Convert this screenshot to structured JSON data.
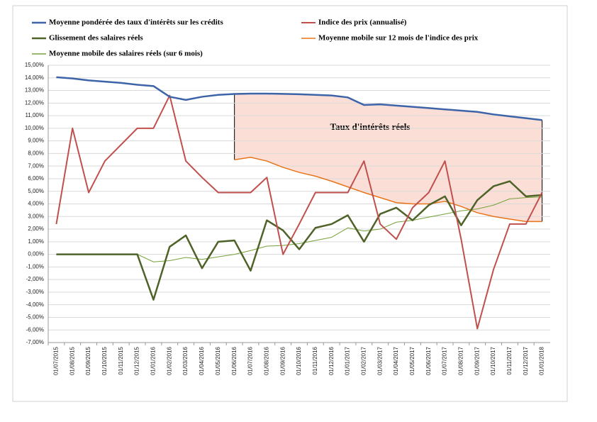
{
  "chart_data": {
    "type": "line",
    "annotation": "Taux d'intérêts réels",
    "categories": [
      "01/07/2015",
      "01/08/2015",
      "01/09/2015",
      "01/10/2015",
      "01/11/2015",
      "01/12/2015",
      "01/01/2016",
      "01/02/2016",
      "01/03/2016",
      "01/04/2016",
      "01/05/2016",
      "01/06/2016",
      "01/07/2016",
      "01/08/2016",
      "01/09/2016",
      "01/10/2016",
      "01/11/2016",
      "01/12/2016",
      "01/01/2017",
      "01/02/2017",
      "01/03/2017",
      "01/04/2017",
      "01/05/2017",
      "01/06/2017",
      "01/07/2017",
      "01/08/2017",
      "01/09/2017",
      "01/10/2017",
      "01/11/2017",
      "01/12/2017",
      "01/01/2018"
    ],
    "series": [
      {
        "name": "Moyenne pondérée des taux d'intérêts sur les crédits",
        "color": "#3d64a8",
        "width": 2.5,
        "values": [
          14.05,
          13.95,
          13.8,
          13.7,
          13.6,
          13.45,
          13.35,
          12.5,
          12.25,
          12.5,
          12.65,
          12.72,
          12.75,
          12.75,
          12.73,
          12.7,
          12.65,
          12.6,
          12.45,
          11.85,
          11.9,
          11.8,
          11.7,
          11.6,
          11.5,
          11.4,
          11.3,
          11.1,
          10.95,
          10.8,
          10.65
        ]
      },
      {
        "name": "Indice des prix (annualisé)",
        "color": "#c0504d",
        "width": 2,
        "values": [
          2.4,
          10,
          4.9,
          7.4,
          8.7,
          10,
          10,
          12.6,
          7.4,
          6.1,
          4.9,
          4.9,
          4.9,
          6.1,
          0,
          2.4,
          4.9,
          4.9,
          4.9,
          7.4,
          2.4,
          1.2,
          3.7,
          4.9,
          7.4,
          1.2,
          -5.9,
          -1.2,
          2.4,
          2.4,
          4.9
        ]
      },
      {
        "name": "Glissement des salaires réels",
        "color": "#4f6228",
        "width": 2.5,
        "values": [
          0,
          0,
          0,
          0,
          0,
          0,
          -3.6,
          0.6,
          1.5,
          -1.1,
          1.0,
          1.1,
          -1.3,
          2.7,
          1.9,
          0.4,
          2.1,
          2.4,
          3.1,
          1.0,
          3.2,
          3.7,
          2.7,
          3.9,
          4.6,
          2.3,
          4.3,
          5.4,
          5.8,
          4.6,
          4.7
        ]
      },
      {
        "name": "Moyenne mobile sur 12 mois de l'indice des prix",
        "color": "#e8741a",
        "width": 1.5,
        "values": [
          null,
          null,
          null,
          null,
          null,
          null,
          null,
          null,
          null,
          null,
          null,
          7.5,
          7.7,
          7.4,
          6.9,
          6.5,
          6.2,
          5.8,
          5.35,
          4.9,
          4.5,
          4.1,
          4.0,
          4.0,
          4.2,
          3.8,
          3.3,
          3.0,
          2.8,
          2.6,
          2.6
        ]
      },
      {
        "name": "Moyenne mobile des salaires réels (sur 6 mois)",
        "color": "#77a03a",
        "width": 1,
        "values": [
          0,
          0,
          0,
          0,
          0,
          0,
          -0.6,
          -0.5,
          -0.25,
          -0.4,
          -0.2,
          0,
          0.3,
          0.65,
          0.7,
          0.85,
          1.1,
          1.35,
          2.1,
          1.85,
          2.0,
          2.55,
          2.7,
          2.95,
          3.2,
          3.45,
          3.6,
          3.9,
          4.4,
          4.5,
          4.55
        ]
      }
    ],
    "ylim": [
      -7,
      15
    ],
    "yticks": [
      {
        "value": -7,
        "label": "-7,00%"
      },
      {
        "value": -6,
        "label": "-6,00%"
      },
      {
        "value": -5,
        "label": "-5,00%"
      },
      {
        "value": -4,
        "label": "-4,00%"
      },
      {
        "value": -3,
        "label": "-3,00%"
      },
      {
        "value": -2,
        "label": "-2,00%"
      },
      {
        "value": -1,
        "label": "-1,00%"
      },
      {
        "value": 0,
        "label": "0,00%"
      },
      {
        "value": 1,
        "label": "1,00%"
      },
      {
        "value": 2,
        "label": "2,00%"
      },
      {
        "value": 3,
        "label": "3,00%"
      },
      {
        "value": 4,
        "label": "4,00%"
      },
      {
        "value": 5,
        "label": "5,00%"
      },
      {
        "value": 6,
        "label": "6,00%"
      },
      {
        "value": 7,
        "label": "7,00%"
      },
      {
        "value": 8,
        "label": "8,00%"
      },
      {
        "value": 9,
        "label": "9,00%"
      },
      {
        "value": 10,
        "label": "10,00%"
      },
      {
        "value": 11,
        "label": "11,00%"
      },
      {
        "value": 12,
        "label": "12,00%"
      },
      {
        "value": 13,
        "label": "13,00%"
      },
      {
        "value": 14,
        "label": "14,00%"
      },
      {
        "value": 15,
        "label": "15,00%"
      }
    ],
    "grid": true
  }
}
